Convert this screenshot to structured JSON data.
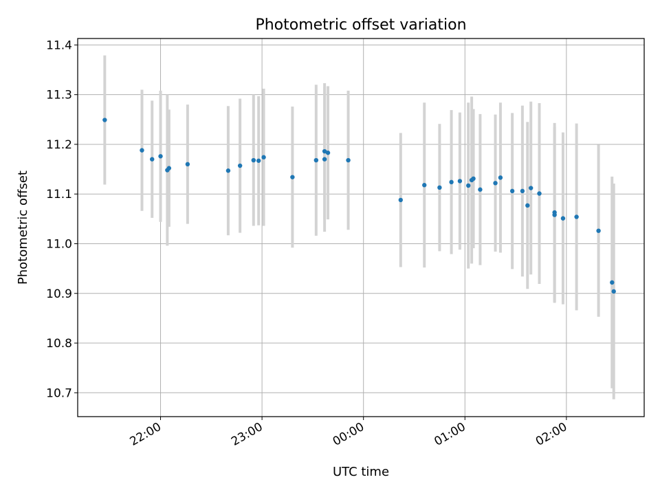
{
  "chart_data": {
    "type": "scatter",
    "title": "Photometric offset variation",
    "xlabel": "UTC time",
    "ylabel": "Photometric offset",
    "grid": true,
    "x_ticks": [
      "22:00",
      "23:00",
      "00:00",
      "01:00",
      "02:00"
    ],
    "y_ticks": [
      "10.7",
      "10.8",
      "10.9",
      "11.0",
      "11.1",
      "11.2",
      "11.3",
      "11.4"
    ],
    "xlim": [
      "21:11",
      "02:46"
    ],
    "ylim": [
      10.652,
      11.413
    ],
    "errorbar_color": "#d3d3d3",
    "marker_color": "#1f77b4",
    "series": [
      {
        "x": [
          "21:27",
          "21:49",
          "21:55",
          "22:00",
          "22:04",
          "22:05",
          "22:16",
          "22:40",
          "22:47",
          "22:55",
          "22:58",
          "23:01",
          "23:18",
          "23:32",
          "23:37",
          "23:37",
          "23:39",
          "23:51",
          "00:22",
          "00:36",
          "00:45",
          "00:52",
          "00:57",
          "01:02",
          "01:04",
          "01:05",
          "01:09",
          "01:18",
          "01:21",
          "01:28",
          "01:34",
          "01:37",
          "01:39",
          "01:44",
          "01:53",
          "01:53",
          "01:58",
          "02:06",
          "02:19",
          "02:27",
          "02:28"
        ],
        "y": [
          11.249,
          11.188,
          11.17,
          11.176,
          11.148,
          11.152,
          11.16,
          11.147,
          11.157,
          11.168,
          11.167,
          11.174,
          11.134,
          11.168,
          11.17,
          11.186,
          11.183,
          11.168,
          11.088,
          11.118,
          11.113,
          11.124,
          11.126,
          11.117,
          11.128,
          11.131,
          11.109,
          11.122,
          11.133,
          11.106,
          11.106,
          11.077,
          11.112,
          11.101,
          11.058,
          11.063,
          11.051,
          11.054,
          11.026,
          10.922,
          10.904
        ],
        "yerr": [
          0.13,
          0.122,
          0.118,
          0.132,
          0.152,
          0.118,
          0.12,
          0.13,
          0.135,
          0.132,
          0.13,
          0.138,
          0.142,
          0.152,
          0.146,
          0.137,
          0.134,
          0.14,
          0.135,
          0.166,
          0.128,
          0.145,
          0.138,
          0.167,
          0.168,
          0.14,
          0.152,
          0.138,
          0.151,
          0.157,
          0.172,
          0.168,
          0.174,
          0.182,
          0.177,
          0.18,
          0.173,
          0.188,
          0.173,
          0.213,
          0.217
        ]
      }
    ]
  }
}
